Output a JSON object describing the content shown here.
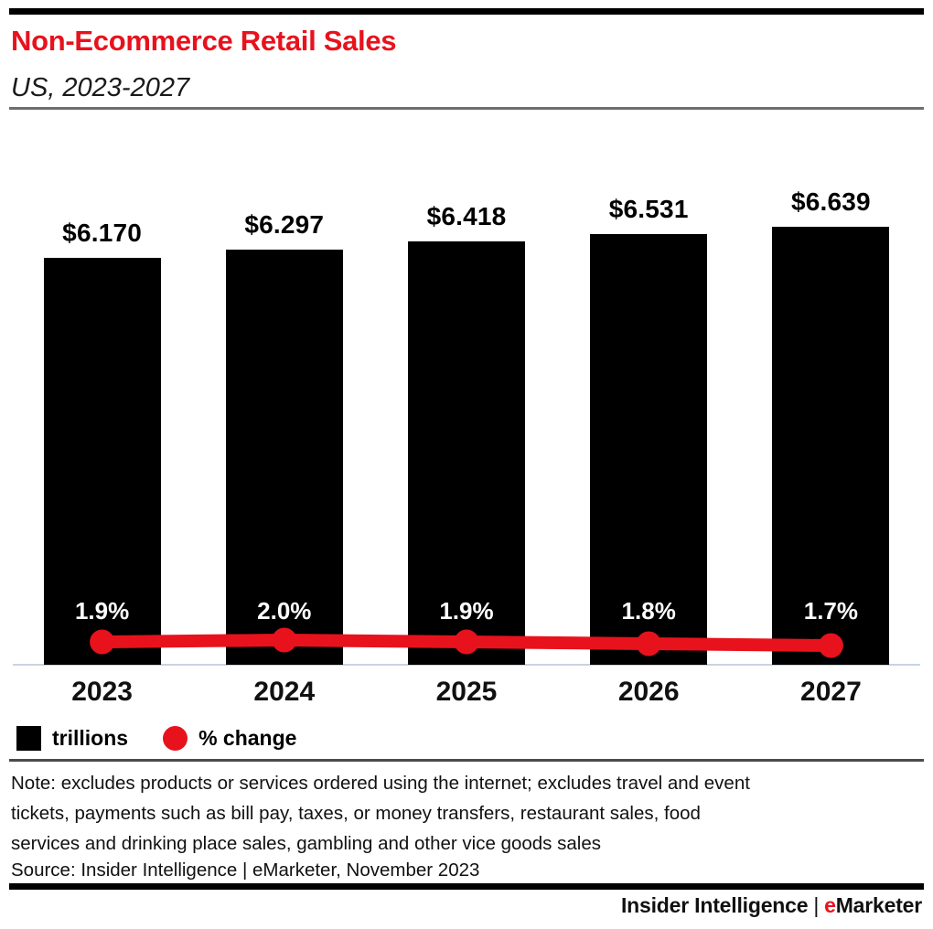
{
  "header": {
    "title": "Non-Ecommerce Retail Sales",
    "subtitle": "US, 2023-2027"
  },
  "chart_data": {
    "type": "combo",
    "title": "Non-Ecommerce Retail Sales",
    "subtitle": "US, 2023-2027",
    "categories": [
      "2023",
      "2024",
      "2025",
      "2026",
      "2027"
    ],
    "series": [
      {
        "name": "trillions",
        "type": "bar",
        "values": [
          6.17,
          6.297,
          6.418,
          6.531,
          6.639
        ],
        "labels": [
          "$6.170",
          "$6.297",
          "$6.418",
          "$6.531",
          "$6.639"
        ],
        "color": "#000000"
      },
      {
        "name": "% change",
        "type": "line",
        "values": [
          1.9,
          2.0,
          1.9,
          1.8,
          1.7
        ],
        "labels": [
          "1.9%",
          "2.0%",
          "1.9%",
          "1.8%",
          "1.7%"
        ],
        "color": "#e8121d"
      }
    ],
    "ylim": [
      0,
      6.639
    ],
    "grid": false,
    "legend_position": "bottom-left",
    "axis_line_color": "#c9d4e3"
  },
  "legend": {
    "items": [
      {
        "label": "trillions",
        "marker": "black-square",
        "color": "#000000"
      },
      {
        "label": "% change",
        "marker": "red-circle",
        "color": "#e8121d"
      }
    ]
  },
  "footnotes": {
    "note": "Note: excludes products or services ordered using the internet; excludes travel and event\ntickets, payments such as bill pay, taxes, or money transfers, restaurant sales, food\nservices and drinking place sales, gambling and other vice goods sales",
    "source": "Source: Insider Intelligence | eMarketer, November 2023"
  },
  "footer": {
    "left": "Insider Intelligence",
    "separator": "|",
    "emarketer_e": "e",
    "emarketer_rest": "Marketer"
  },
  "colors": {
    "accent_red": "#e8121d",
    "bar_black": "#000000",
    "axis_line": "#c9d4e3"
  }
}
